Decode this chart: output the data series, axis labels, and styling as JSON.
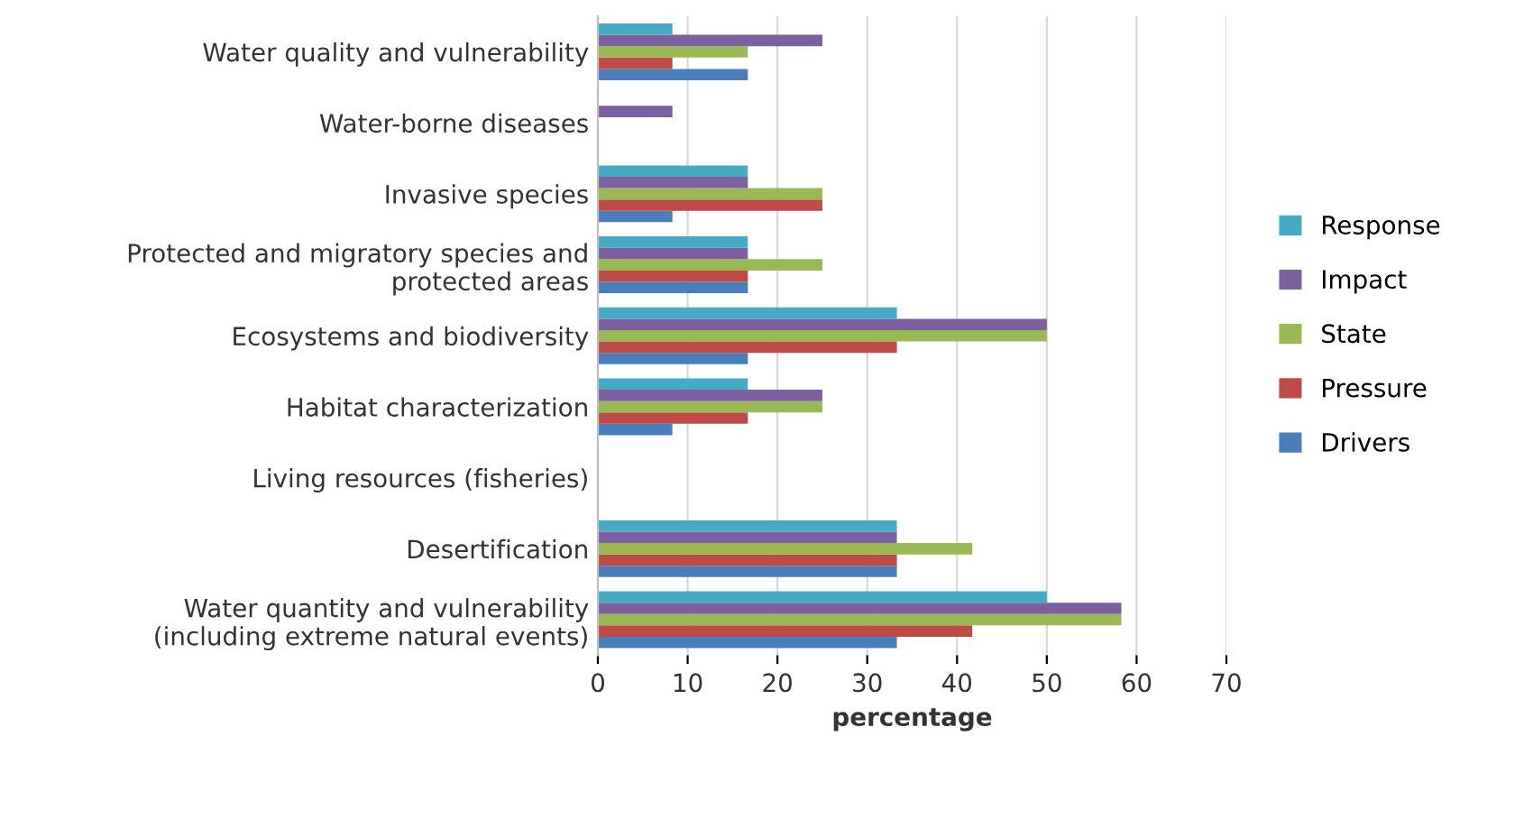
{
  "chart_data": {
    "type": "bar",
    "orientation": "horizontal",
    "xlabel": "percentage",
    "categories": [
      "Water quality and vulnerability",
      "Water-borne diseases",
      "Invasive species",
      "Protected and migratory species and\nprotected areas",
      "Ecosystems and biodiversity",
      "Habitat characterization",
      "Living resources (fisheries)",
      "Desertification",
      "Water quantity and vulnerability\n(including extreme natural events)"
    ],
    "series": [
      {
        "name": "Drivers",
        "color": "#4a7ebb",
        "values": [
          16.7,
          0,
          8.3,
          16.7,
          16.7,
          8.3,
          0,
          33.3,
          33.3
        ]
      },
      {
        "name": "Pressure",
        "color": "#be4b48",
        "values": [
          8.3,
          0,
          25,
          16.7,
          33.3,
          16.7,
          0,
          33.3,
          41.7
        ]
      },
      {
        "name": "State",
        "color": "#98b954",
        "values": [
          16.7,
          0,
          25,
          25,
          50,
          25,
          0,
          41.7,
          58.3
        ]
      },
      {
        "name": "Impact",
        "color": "#7d60a0",
        "values": [
          25,
          8.3,
          16.7,
          16.7,
          50,
          25,
          0,
          33.3,
          58.3
        ]
      },
      {
        "name": "Response",
        "color": "#46aac5",
        "values": [
          8.3,
          0,
          16.7,
          16.7,
          33.3,
          16.7,
          0,
          33.3,
          50
        ]
      }
    ],
    "xlim": [
      0,
      70
    ],
    "xticks": [
      0,
      10,
      20,
      30,
      40,
      50,
      60,
      70
    ],
    "grid": "x",
    "legend": "right"
  }
}
